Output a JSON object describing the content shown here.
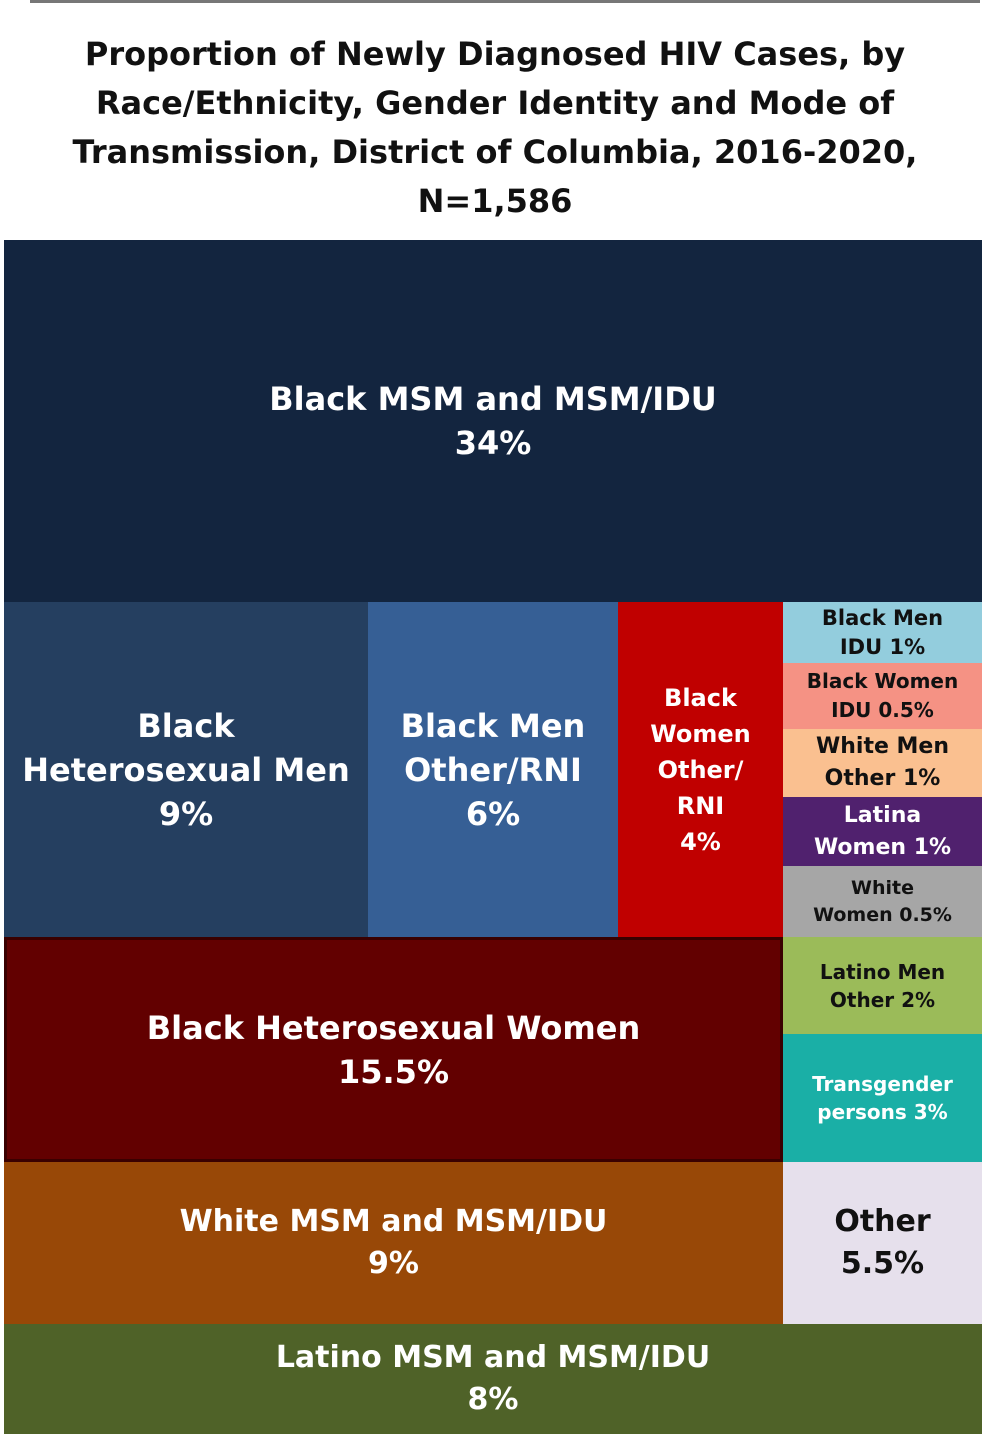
{
  "title_lines": [
    "Proportion of Newly Diagnosed HIV Cases,  by",
    "Race/Ethnicity, Gender Identity and Mode of",
    "Transmission, District of Columbia, 2016-2020,",
    "N=1,586"
  ],
  "chart_data": {
    "type": "treemap",
    "title": "Proportion of Newly Diagnosed HIV Cases,  by Race/Ethnicity, Gender Identity and Mode of Transmission, District of Columbia, 2016-2020, N=1,586",
    "unit": "%",
    "items": [
      {
        "id": "black-msm",
        "name": "Black MSM and MSM/IDU",
        "value": 34,
        "label": "34%",
        "color": "#13253f",
        "text_color": "#ffffff",
        "lines": [
          "Black MSM and MSM/IDU",
          "34%"
        ]
      },
      {
        "id": "black-het-men",
        "name": "Black Heterosexual Men",
        "value": 9,
        "label": "9%",
        "color": "#253f60",
        "text_color": "#ffffff",
        "lines": [
          "Black",
          "Heterosexual Men",
          "9%"
        ]
      },
      {
        "id": "black-men-other",
        "name": "Black Men Other/RNI",
        "value": 6,
        "label": "6%",
        "color": "#365f95",
        "text_color": "#ffffff",
        "lines": [
          "Black Men",
          "Other/RNI",
          "6%"
        ]
      },
      {
        "id": "black-women-other",
        "name": "Black Women Other/RNI",
        "value": 4,
        "label": "4%",
        "color": "#c00000",
        "text_color": "#ffffff",
        "lines": [
          "Black",
          "Women",
          "Other/",
          "RNI",
          "4%"
        ]
      },
      {
        "id": "black-men-idu",
        "name": "Black Men IDU",
        "value": 1,
        "label": "1%",
        "color": "#93cddd",
        "text_color": "#111111",
        "lines": [
          "Black Men",
          "IDU 1%"
        ]
      },
      {
        "id": "black-women-idu",
        "name": "Black Women IDU",
        "value": 0.5,
        "label": "0.5%",
        "color": "#f59284",
        "text_color": "#111111",
        "lines": [
          "Black Women",
          "IDU 0.5%"
        ]
      },
      {
        "id": "white-men-other",
        "name": "White Men Other",
        "value": 1,
        "label": "1%",
        "color": "#fac090",
        "text_color": "#111111",
        "lines": [
          "White Men",
          "Other 1%"
        ]
      },
      {
        "id": "latina-women",
        "name": "Latina Women",
        "value": 1,
        "label": "1%",
        "color": "#50216e",
        "text_color": "#ffffff",
        "lines": [
          "Latina",
          "Women 1%"
        ]
      },
      {
        "id": "white-women",
        "name": "White Women",
        "value": 0.5,
        "label": "0.5%",
        "color": "#a6a6a6",
        "text_color": "#111111",
        "lines": [
          "White",
          "Women 0.5%"
        ]
      },
      {
        "id": "black-het-women",
        "name": "Black Heterosexual Women",
        "value": 15.5,
        "label": "15.5%",
        "color": "#620000",
        "text_color": "#ffffff",
        "lines": [
          "Black Heterosexual Women",
          "15.5%"
        ]
      },
      {
        "id": "latino-men-other",
        "name": "Latino Men Other",
        "value": 2,
        "label": "2%",
        "color": "#9bbb59",
        "text_color": "#111111",
        "lines": [
          "Latino Men",
          "Other 2%"
        ]
      },
      {
        "id": "transgender",
        "name": "Transgender persons",
        "value": 3,
        "label": "3%",
        "color": "#1aafa6",
        "text_color": "#ffffff",
        "lines": [
          "Transgender",
          "persons 3%"
        ]
      },
      {
        "id": "white-msm",
        "name": "White MSM and MSM/IDU",
        "value": 9,
        "label": "9%",
        "color": "#984807",
        "text_color": "#ffffff",
        "lines": [
          "White MSM and MSM/IDU",
          "9%"
        ]
      },
      {
        "id": "other",
        "name": "Other",
        "value": 5.5,
        "label": "5.5%",
        "color": "#e6e0ec",
        "text_color": "#111111",
        "lines": [
          "Other",
          "5.5%"
        ]
      },
      {
        "id": "latino-msm",
        "name": "Latino MSM and MSM/IDU",
        "value": 8,
        "label": "8%",
        "color": "#4f6228",
        "text_color": "#ffffff",
        "lines": [
          "Latino MSM and MSM/IDU",
          "8%"
        ]
      }
    ]
  }
}
